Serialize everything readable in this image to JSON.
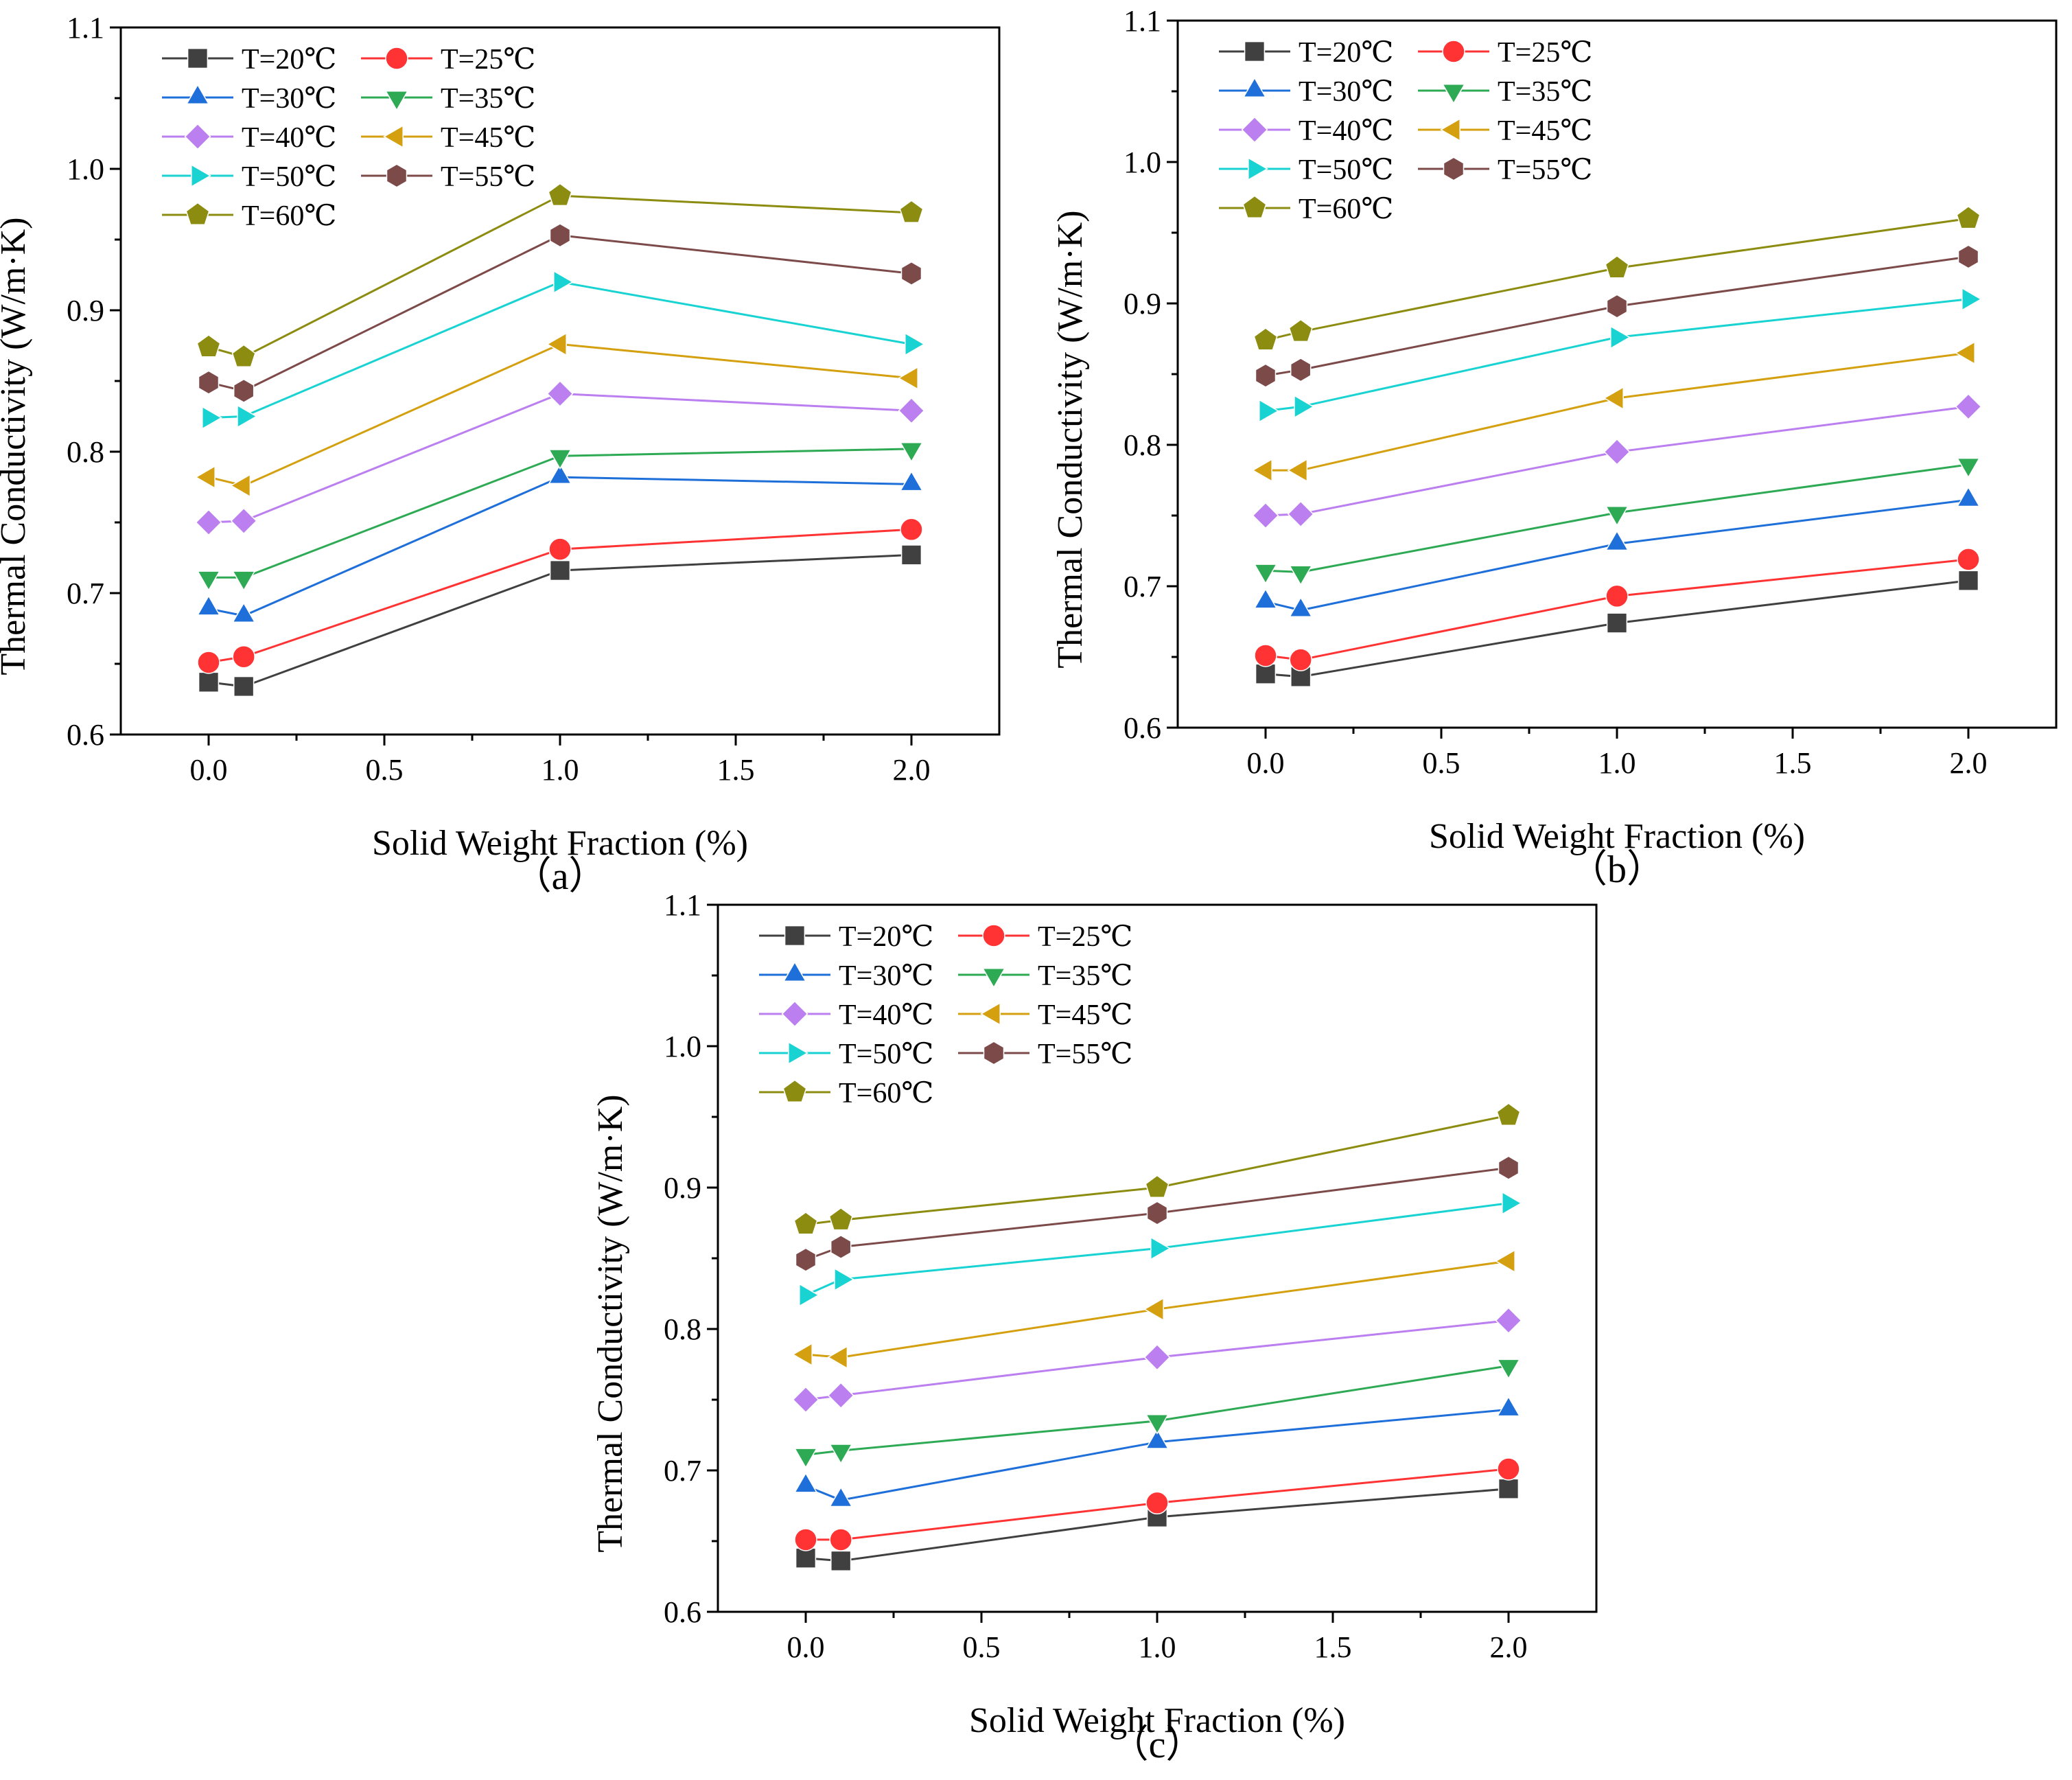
{
  "chart_data": [
    {
      "type": "line",
      "panel_label": "（a）",
      "xlabel": "Solid Weight Fraction (%)",
      "ylabel": "Thermal Conductivity (W/m·K)",
      "xlim": [
        -0.25,
        2.25
      ],
      "ylim": [
        0.6,
        1.1
      ],
      "xticks": [
        0.0,
        0.5,
        1.0,
        1.5,
        2.0
      ],
      "xtick_labels": [
        "0.0",
        "0.5",
        "1.0",
        "1.5",
        "2.0"
      ],
      "yticks": [
        0.6,
        0.7,
        0.8,
        0.9,
        1.0,
        1.1
      ],
      "ytick_labels": [
        "0.6",
        "0.7",
        "0.8",
        "0.9",
        "1.0",
        "1.1"
      ],
      "x": [
        0,
        0.1,
        1,
        2
      ],
      "series": [
        {
          "name": "T=20℃",
          "color": "#404040",
          "marker": "square",
          "values": [
            0.637,
            0.634,
            0.716,
            0.727
          ]
        },
        {
          "name": "T=25℃",
          "color": "#ff3333",
          "marker": "circle",
          "values": [
            0.651,
            0.655,
            0.731,
            0.745
          ]
        },
        {
          "name": "T=30℃",
          "color": "#1e6fd9",
          "marker": "triangle-up",
          "values": [
            0.689,
            0.684,
            0.782,
            0.777
          ]
        },
        {
          "name": "T=35℃",
          "color": "#2eaa55",
          "marker": "triangle-down",
          "values": [
            0.711,
            0.711,
            0.797,
            0.802
          ]
        },
        {
          "name": "T=40℃",
          "color": "#bb7ff0",
          "marker": "diamond",
          "values": [
            0.75,
            0.751,
            0.841,
            0.829
          ]
        },
        {
          "name": "T=45℃",
          "color": "#d4a010",
          "marker": "triangle-left",
          "values": [
            0.782,
            0.776,
            0.876,
            0.852
          ]
        },
        {
          "name": "T=50℃",
          "color": "#19d3d3",
          "marker": "triangle-right",
          "values": [
            0.824,
            0.825,
            0.92,
            0.876
          ]
        },
        {
          "name": "T=55℃",
          "color": "#7d4a4a",
          "marker": "hexagon",
          "values": [
            0.849,
            0.843,
            0.953,
            0.926
          ]
        },
        {
          "name": "T=60℃",
          "color": "#8c8c10",
          "marker": "pentagon",
          "values": [
            0.874,
            0.867,
            0.981,
            0.969
          ]
        }
      ]
    },
    {
      "type": "line",
      "panel_label": "（b）",
      "xlabel": "Solid Weight Fraction (%)",
      "ylabel": "Thermal Conductivity (W/m·K)",
      "xlim": [
        -0.25,
        2.25
      ],
      "ylim": [
        0.6,
        1.1
      ],
      "xticks": [
        0.0,
        0.5,
        1.0,
        1.5,
        2.0
      ],
      "xtick_labels": [
        "0.0",
        "0.5",
        "1.0",
        "1.5",
        "2.0"
      ],
      "yticks": [
        0.6,
        0.7,
        0.8,
        0.9,
        1.0,
        1.1
      ],
      "ytick_labels": [
        "0.6",
        "0.7",
        "0.8",
        "0.9",
        "1.0",
        "1.1"
      ],
      "x": [
        0,
        0.1,
        1,
        2
      ],
      "series": [
        {
          "name": "T=20℃",
          "color": "#404040",
          "marker": "square",
          "values": [
            0.638,
            0.636,
            0.674,
            0.704
          ]
        },
        {
          "name": "T=25℃",
          "color": "#ff3333",
          "marker": "circle",
          "values": [
            0.651,
            0.648,
            0.693,
            0.719
          ]
        },
        {
          "name": "T=30℃",
          "color": "#1e6fd9",
          "marker": "triangle-up",
          "values": [
            0.689,
            0.683,
            0.73,
            0.761
          ]
        },
        {
          "name": "T=35℃",
          "color": "#2eaa55",
          "marker": "triangle-down",
          "values": [
            0.711,
            0.71,
            0.752,
            0.786
          ]
        },
        {
          "name": "T=40℃",
          "color": "#bb7ff0",
          "marker": "diamond",
          "values": [
            0.75,
            0.751,
            0.795,
            0.827
          ]
        },
        {
          "name": "T=45℃",
          "color": "#d4a010",
          "marker": "triangle-left",
          "values": [
            0.782,
            0.782,
            0.833,
            0.865
          ]
        },
        {
          "name": "T=50℃",
          "color": "#19d3d3",
          "marker": "triangle-right",
          "values": [
            0.824,
            0.827,
            0.876,
            0.903
          ]
        },
        {
          "name": "T=55℃",
          "color": "#7d4a4a",
          "marker": "hexagon",
          "values": [
            0.849,
            0.853,
            0.898,
            0.933
          ]
        },
        {
          "name": "T=60℃",
          "color": "#8c8c10",
          "marker": "pentagon",
          "values": [
            0.874,
            0.88,
            0.925,
            0.96
          ]
        }
      ]
    },
    {
      "type": "line",
      "panel_label": "（c）",
      "xlabel": "Solid Weight Fraction (%)",
      "ylabel": "Thermal Conductivity (W/m·K)",
      "xlim": [
        -0.25,
        2.25
      ],
      "ylim": [
        0.6,
        1.1
      ],
      "xticks": [
        0.0,
        0.5,
        1.0,
        1.5,
        2.0
      ],
      "xtick_labels": [
        "0.0",
        "0.5",
        "1.0",
        "1.5",
        "2.0"
      ],
      "yticks": [
        0.6,
        0.7,
        0.8,
        0.9,
        1.0,
        1.1
      ],
      "ytick_labels": [
        "0.6",
        "0.7",
        "0.8",
        "0.9",
        "1.0",
        "1.1"
      ],
      "x": [
        0,
        0.1,
        1,
        2
      ],
      "series": [
        {
          "name": "T=20℃",
          "color": "#404040",
          "marker": "square",
          "values": [
            0.638,
            0.636,
            0.667,
            0.687
          ]
        },
        {
          "name": "T=25℃",
          "color": "#ff3333",
          "marker": "circle",
          "values": [
            0.651,
            0.651,
            0.677,
            0.701
          ]
        },
        {
          "name": "T=30℃",
          "color": "#1e6fd9",
          "marker": "triangle-up",
          "values": [
            0.689,
            0.679,
            0.72,
            0.743
          ]
        },
        {
          "name": "T=35℃",
          "color": "#2eaa55",
          "marker": "triangle-down",
          "values": [
            0.711,
            0.714,
            0.735,
            0.774
          ]
        },
        {
          "name": "T=40℃",
          "color": "#bb7ff0",
          "marker": "diamond",
          "values": [
            0.75,
            0.753,
            0.78,
            0.806
          ]
        },
        {
          "name": "T=45℃",
          "color": "#d4a010",
          "marker": "triangle-left",
          "values": [
            0.782,
            0.78,
            0.814,
            0.848
          ]
        },
        {
          "name": "T=50℃",
          "color": "#19d3d3",
          "marker": "triangle-right",
          "values": [
            0.824,
            0.835,
            0.857,
            0.889
          ]
        },
        {
          "name": "T=55℃",
          "color": "#7d4a4a",
          "marker": "hexagon",
          "values": [
            0.849,
            0.858,
            0.882,
            0.914
          ]
        },
        {
          "name": "T=60℃",
          "color": "#8c8c10",
          "marker": "pentagon",
          "values": [
            0.874,
            0.877,
            0.9,
            0.951
          ]
        }
      ]
    }
  ]
}
